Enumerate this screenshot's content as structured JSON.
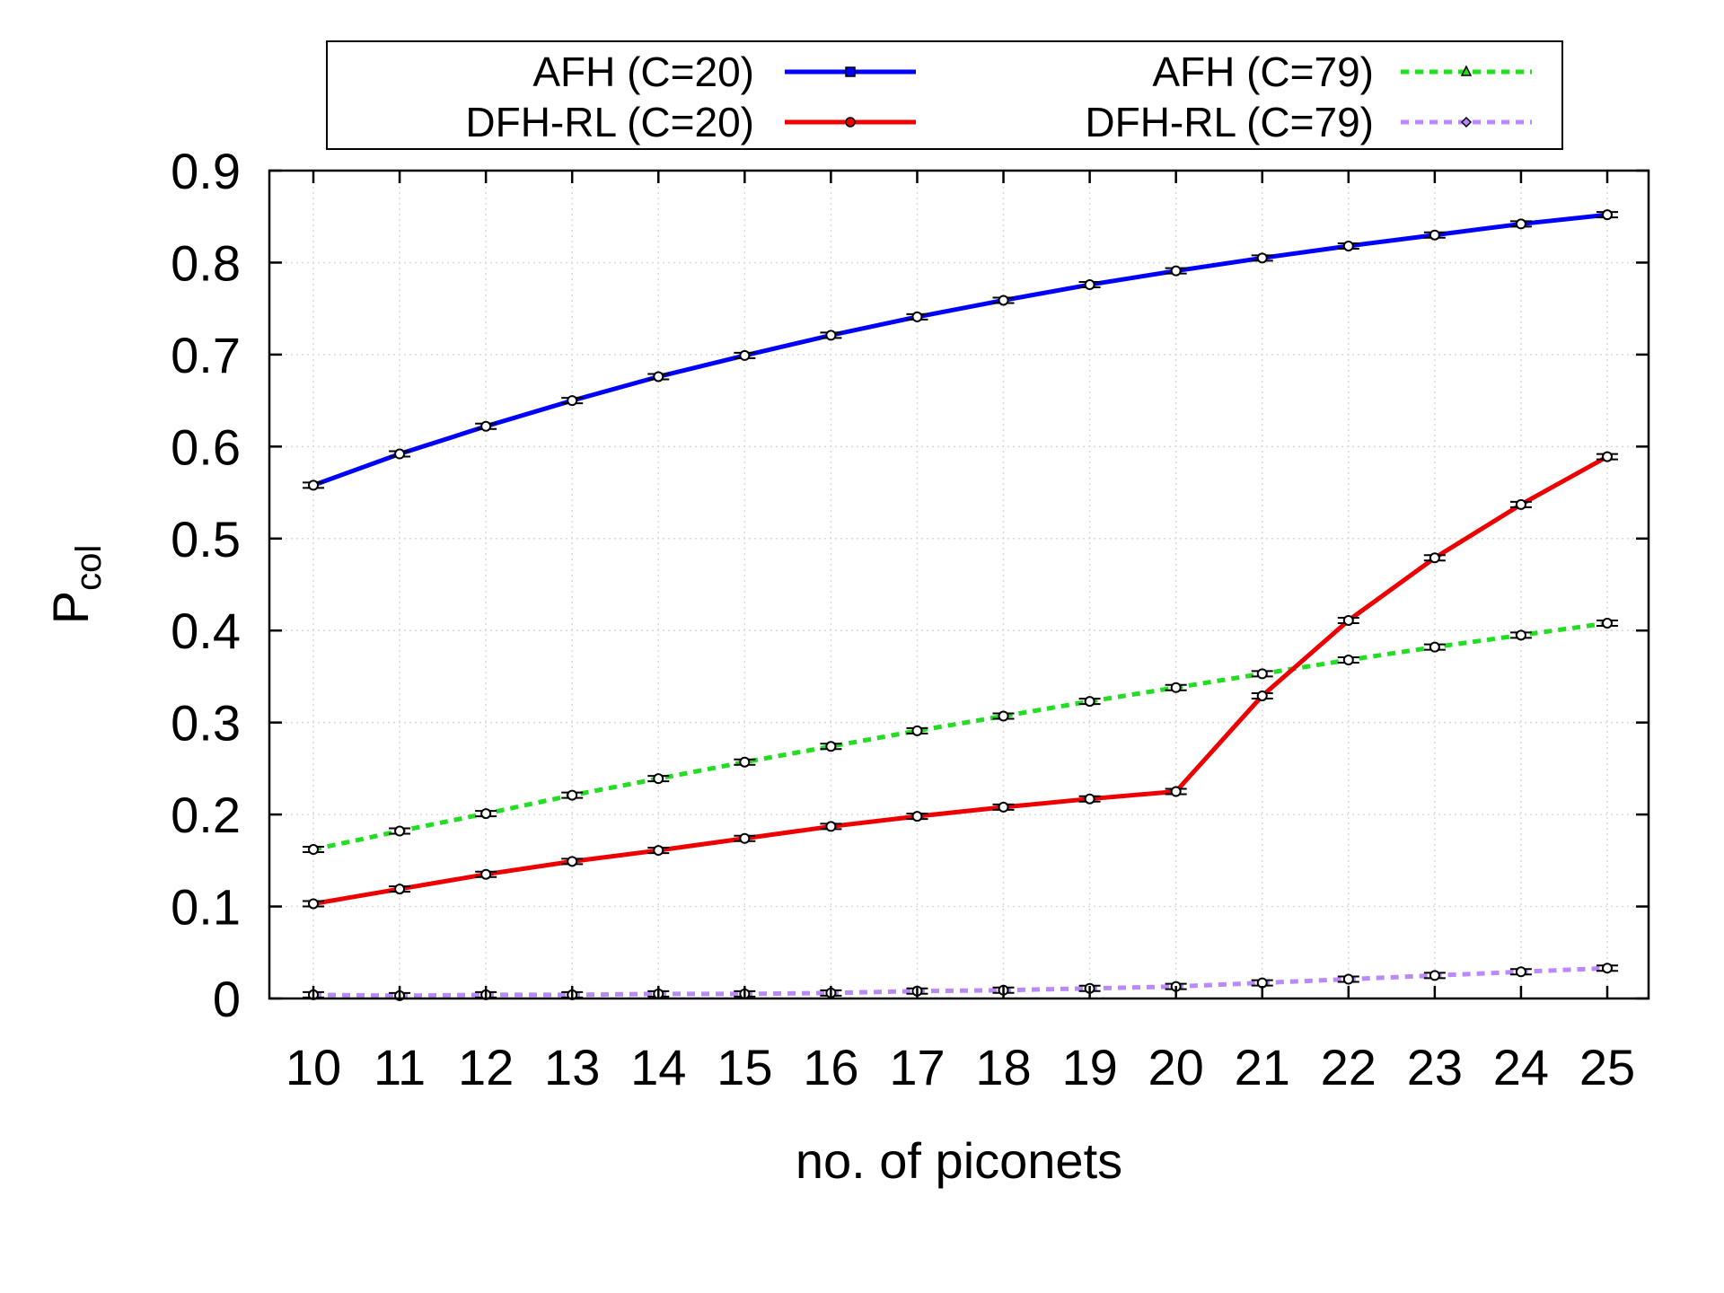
{
  "chart_data": {
    "type": "line",
    "xlabel": "no. of piconets",
    "ylabel": "P",
    "ylabel_sub": "col",
    "x": [
      10,
      11,
      12,
      13,
      14,
      15,
      16,
      17,
      18,
      19,
      20,
      21,
      22,
      23,
      24,
      25
    ],
    "xlim": [
      10,
      25
    ],
    "ylim": [
      0,
      0.9
    ],
    "yticks": [
      0,
      0.1,
      0.2,
      0.3,
      0.4,
      0.5,
      0.6,
      0.7,
      0.8,
      0.9
    ],
    "grid": true,
    "legend_position": "top",
    "series": [
      {
        "name": "AFH (C=20)",
        "color": "#0000ff",
        "dash": "solid",
        "marker": "square",
        "values": [
          0.558,
          0.592,
          0.622,
          0.65,
          0.676,
          0.699,
          0.721,
          0.741,
          0.759,
          0.776,
          0.791,
          0.805,
          0.818,
          0.83,
          0.842,
          0.852
        ]
      },
      {
        "name": "AFH (C=79)",
        "color": "#22dd22",
        "dash": "dotted",
        "marker": "triangle",
        "values": [
          0.162,
          0.182,
          0.201,
          0.221,
          0.239,
          0.257,
          0.274,
          0.291,
          0.307,
          0.323,
          0.338,
          0.353,
          0.368,
          0.382,
          0.395,
          0.408
        ]
      },
      {
        "name": "DFH-RL (C=20)",
        "color": "#ee0000",
        "dash": "solid",
        "marker": "circle",
        "values": [
          0.103,
          0.119,
          0.135,
          0.149,
          0.161,
          0.174,
          0.187,
          0.198,
          0.208,
          0.217,
          0.225,
          0.329,
          0.411,
          0.479,
          0.537,
          0.589
        ]
      },
      {
        "name": "DFH-RL (C=79)",
        "color": "#bb88ff",
        "dash": "dotted",
        "marker": "diamond",
        "values": [
          0.004,
          0.003,
          0.004,
          0.004,
          0.005,
          0.005,
          0.006,
          0.008,
          0.009,
          0.011,
          0.013,
          0.017,
          0.021,
          0.025,
          0.029,
          0.033
        ]
      }
    ]
  }
}
